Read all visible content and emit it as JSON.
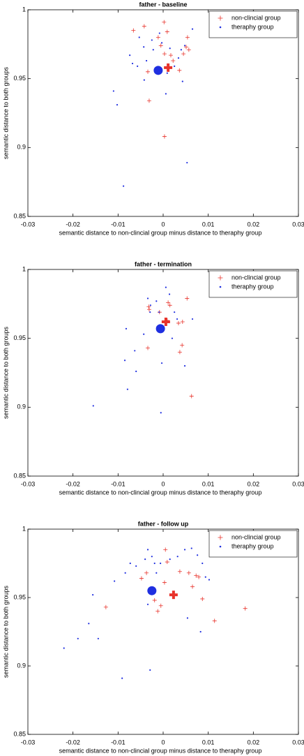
{
  "chart_data": [
    {
      "type": "scatter",
      "title": "father - baseline",
      "xlabel": "semantic distance to non-clincial group minus distance to theraphy group",
      "ylabel": "semantic distance to both groups",
      "xlim": [
        -0.03,
        0.03
      ],
      "xticks": [
        -0.03,
        -0.02,
        -0.01,
        0,
        0.01,
        0.02,
        0.03
      ],
      "ylim": [
        0.85,
        1
      ],
      "yticks": [
        0.85,
        0.9,
        0.95,
        1
      ],
      "legend": "upper right",
      "series": [
        {
          "name": "non-clincial group",
          "color": "#e8332b",
          "marker": "plus",
          "x": [
            -0.0066,
            -0.0042,
            0.0002,
            0.0009,
            -0.0011,
            -0.0005,
            0.0003,
            0.0017,
            0.0022,
            0.0036,
            0.0045,
            0.0051,
            0.0057,
            0.0054,
            -0.0034,
            -0.0031,
            0.0003
          ],
          "values": [
            0.985,
            0.988,
            0.991,
            0.984,
            0.98,
            0.974,
            0.968,
            0.967,
            0.963,
            0.956,
            0.968,
            0.973,
            0.971,
            0.98,
            0.955,
            0.934,
            0.908
          ],
          "mean": {
            "x": 0.0011,
            "y": 0.958
          }
        },
        {
          "name": "theraphy group",
          "color": "#1f2fe0",
          "marker": "dot",
          "x": [
            -0.0074,
            -0.0068,
            -0.0057,
            -0.0053,
            -0.0043,
            -0.0037,
            -0.0025,
            -0.0022,
            -0.0008,
            -0.0003,
            0.0009,
            0.0015,
            0.0025,
            0.0034,
            0.004,
            0.0048,
            0.0065,
            0.0043,
            0.0006,
            -0.0042,
            -0.011,
            -0.0102,
            0.0053,
            -0.0088
          ],
          "values": [
            0.967,
            0.961,
            0.959,
            0.98,
            0.973,
            0.963,
            0.978,
            0.971,
            0.983,
            0.976,
            0.954,
            0.972,
            0.959,
            0.965,
            0.971,
            0.974,
            0.986,
            0.948,
            0.939,
            0.949,
            0.941,
            0.931,
            0.889,
            0.872
          ],
          "mean": {
            "x": -0.0011,
            "y": 0.956
          }
        }
      ]
    },
    {
      "type": "scatter",
      "title": "father - termination",
      "xlabel": "semantic distance to non-clincial group minus distance to theraphy group",
      "ylabel": "semantic distance to both groups",
      "xlim": [
        -0.03,
        0.03
      ],
      "xticks": [
        -0.03,
        -0.02,
        -0.01,
        0,
        0.01,
        0.02,
        0.03
      ],
      "ylim": [
        0.85,
        1
      ],
      "yticks": [
        0.85,
        0.9,
        0.95,
        1
      ],
      "legend": "upper right",
      "series": [
        {
          "name": "non-clincial group",
          "color": "#e8332b",
          "marker": "plus",
          "x": [
            -0.0032,
            -0.0031,
            -0.0034,
            -0.0008,
            0.0011,
            0.0015,
            0.0009,
            0.0034,
            0.0043,
            0.0053,
            0.0042,
            0.0037,
            0.0063
          ],
          "values": [
            0.973,
            0.971,
            0.943,
            0.969,
            0.976,
            0.974,
            0.963,
            0.961,
            0.962,
            0.979,
            0.945,
            0.94,
            0.908
          ],
          "mean": {
            "x": 0.0006,
            "y": 0.962
          }
        },
        {
          "name": "theraphy group",
          "color": "#1f2fe0",
          "marker": "dot",
          "x": [
            -0.0082,
            -0.0063,
            -0.006,
            -0.0079,
            -0.0085,
            -0.0043,
            -0.0029,
            -0.0034,
            -0.0028,
            -0.0015,
            -0.0009,
            0.0006,
            0.0014,
            0.002,
            0.0025,
            0.0031,
            0.0065,
            0.0048,
            -0.0003,
            -0.0005,
            -0.0155
          ],
          "values": [
            0.957,
            0.941,
            0.926,
            0.913,
            0.934,
            0.953,
            0.969,
            0.979,
            0.974,
            0.977,
            0.969,
            0.987,
            0.982,
            0.95,
            0.969,
            0.964,
            0.964,
            0.93,
            0.932,
            0.896,
            0.901
          ],
          "mean": {
            "x": -0.0006,
            "y": 0.957
          }
        }
      ]
    },
    {
      "type": "scatter",
      "title": "father - follow up",
      "xlabel": "semantic distance to non-clincial group minus distance to theraphy group",
      "ylabel": "semantic distance to both groups",
      "xlim": [
        -0.03,
        0.03
      ],
      "xticks": [
        -0.03,
        -0.02,
        -0.01,
        0,
        0.01,
        0.02,
        0.03
      ],
      "ylim": [
        0.85,
        1
      ],
      "yticks": [
        0.85,
        0.9,
        0.95,
        1
      ],
      "legend": "upper right",
      "series": [
        {
          "name": "non-clincial group",
          "color": "#e8332b",
          "marker": "plus",
          "x": [
            -0.0127,
            -0.0048,
            -0.0037,
            -0.0019,
            -0.0012,
            -0.0005,
            0.0005,
            0.0009,
            0.0003,
            0.0037,
            0.0057,
            0.0073,
            0.0079,
            0.0065,
            0.0087,
            0.0114,
            0.0182
          ],
          "values": [
            0.943,
            0.964,
            0.968,
            0.948,
            0.94,
            0.944,
            0.985,
            0.976,
            0.961,
            0.969,
            0.968,
            0.966,
            0.965,
            0.958,
            0.949,
            0.933,
            0.942
          ],
          "mean": {
            "x": 0.0023,
            "y": 0.952
          }
        },
        {
          "name": "theraphy group",
          "color": "#1f2fe0",
          "marker": "dot",
          "x": [
            -0.022,
            -0.0189,
            -0.0156,
            -0.0165,
            -0.0144,
            -0.0108,
            -0.0084,
            -0.0073,
            -0.006,
            -0.004,
            -0.0034,
            -0.0025,
            -0.0019,
            -0.0015,
            -0.0006,
            0.0015,
            0.0032,
            0.0048,
            0.0063,
            0.0076,
            0.0087,
            0.0094,
            0.0102,
            -0.0034,
            -0.0029,
            -0.0091,
            0.0083,
            0.0054
          ],
          "values": [
            0.913,
            0.92,
            0.952,
            0.931,
            0.92,
            0.962,
            0.968,
            0.975,
            0.973,
            0.978,
            0.985,
            0.98,
            0.975,
            0.968,
            0.975,
            0.978,
            0.98,
            0.985,
            0.986,
            0.981,
            0.975,
            0.965,
            0.963,
            0.945,
            0.897,
            0.891,
            0.925,
            0.935
          ],
          "mean": {
            "x": -0.0025,
            "y": 0.955
          }
        }
      ]
    }
  ]
}
